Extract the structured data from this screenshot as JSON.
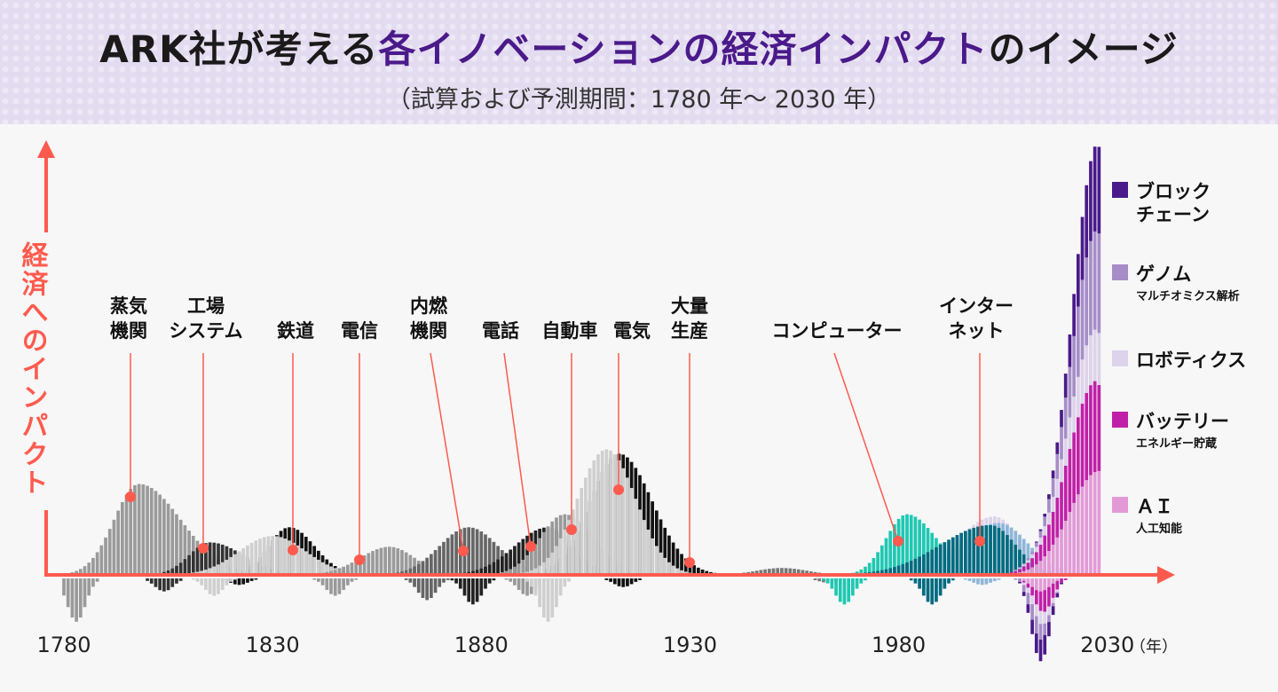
{
  "header": {
    "title_pre": "ARK社が考える",
    "title_accent": "各イノベーションの経済インパクト",
    "title_post": "のイメージ",
    "subtitle": "（試算および予測期間：1780 年～ 2030 年）"
  },
  "chart_data": {
    "type": "bar",
    "ylabel": "経済へのインパクト",
    "x_unit": "（年）",
    "xlim": [
      1780,
      2030
    ],
    "x_ticks": [
      "1780",
      "1830",
      "1880",
      "1930",
      "1980",
      "2030"
    ],
    "y_ticks": [],
    "grid": false,
    "legend_position": "right",
    "colors": {
      "axis": "#ff5a4e",
      "accent": "#4a1a8a"
    },
    "innovations": [
      {
        "label": [
          "蒸気",
          "機関"
        ],
        "year": 1795
      },
      {
        "label": [
          "工場",
          "システム"
        ],
        "year": 1812
      },
      {
        "label": [
          "鉄道"
        ],
        "year": 1834
      },
      {
        "label": [
          "電信"
        ],
        "year": 1850
      },
      {
        "label": [
          "内燃",
          "機関"
        ],
        "year": 1875
      },
      {
        "label": [
          "電話"
        ],
        "year": 1891
      },
      {
        "label": [
          "自動車"
        ],
        "year": 1901
      },
      {
        "label": [
          "電気"
        ],
        "year": 1912
      },
      {
        "label": [
          "大量",
          "生産"
        ],
        "year": 1929
      },
      {
        "label": [
          "コンピューター"
        ],
        "year": 1979
      },
      {
        "label": [
          "インター",
          "ネット"
        ],
        "year": 1999
      }
    ],
    "waves": [
      {
        "id": "steam",
        "color": "#9a9a9a",
        "peak_year": 1798,
        "peak_value": 21,
        "spread_left": 6,
        "spread_right": 10,
        "dip_year": 1783,
        "dip_value": -10
      },
      {
        "id": "factory",
        "color": "#333333",
        "peak_year": 1815,
        "peak_value": 7.5,
        "spread_left": 5,
        "spread_right": 8,
        "dip_year": 1804,
        "dip_value": -3
      },
      {
        "id": "railway-dark",
        "color": "#111111",
        "peak_year": 1834,
        "peak_value": 11,
        "spread_left": 5,
        "spread_right": 6,
        "dip_year": 1822,
        "dip_value": -1.5
      },
      {
        "id": "railway-light",
        "color": "#cfcfcf",
        "peak_year": 1830,
        "peak_value": 9,
        "spread_left": 8,
        "spread_right": 8,
        "dip_year": 1816,
        "dip_value": -4
      },
      {
        "id": "telegraph",
        "color": "#9a9a9a",
        "peak_year": 1858,
        "peak_value": 6.5,
        "spread_left": 7,
        "spread_right": 6,
        "dip_year": 1845,
        "dip_value": -4
      },
      {
        "id": "combustion",
        "color": "#666666",
        "peak_year": 1877,
        "peak_value": 11,
        "spread_left": 7,
        "spread_right": 7,
        "dip_year": 1867,
        "dip_value": -5
      },
      {
        "id": "telephone",
        "color": "#222222",
        "peak_year": 1896,
        "peak_value": 11,
        "spread_left": 8,
        "spread_right": 6,
        "dip_year": 1878,
        "dip_value": -6
      },
      {
        "id": "automobile",
        "color": "#999999",
        "peak_year": 1900,
        "peak_value": 14,
        "spread_left": 6,
        "spread_right": 7,
        "dip_year": 1891,
        "dip_value": -4
      },
      {
        "id": "mass-production",
        "color": "#111111",
        "peak_year": 1913,
        "peak_value": 28,
        "spread_left": 7,
        "spread_right": 8,
        "dip_year": 1914,
        "dip_value": -2
      },
      {
        "id": "electricity",
        "color": "#cfcfcf",
        "peak_year": 1910,
        "peak_value": 29,
        "spread_left": 7,
        "spread_right": 7,
        "dip_year": 1896,
        "dip_value": -10
      },
      {
        "id": "postwar",
        "color": "#777777",
        "peak_year": 1952,
        "peak_value": 1.6,
        "spread_left": 6,
        "spread_right": 6,
        "dip_year": 1963,
        "dip_value": -1
      },
      {
        "id": "computer",
        "color": "#1ec8b2",
        "peak_year": 1982,
        "peak_value": 14,
        "spread_left": 5,
        "spread_right": 7,
        "dip_year": 1967,
        "dip_value": -6
      },
      {
        "id": "robotics-early",
        "color": "#ddd3ea",
        "peak_year": 2003,
        "peak_value": 13.5,
        "spread_left": 9,
        "spread_right": 6,
        "dip_year": 2001,
        "dip_value": -1
      },
      {
        "id": "internet-halo",
        "color": "#8fb6d8",
        "peak_year": 2004,
        "peak_value": 12,
        "spread_left": 9,
        "spread_right": 7,
        "dip_year": 2000,
        "dip_value": -1.5
      },
      {
        "id": "internet",
        "color": "#006b80",
        "peak_year": 2002,
        "peak_value": 11.5,
        "spread_left": 12,
        "spread_right": 6,
        "dip_year": 1988,
        "dip_value": -6
      }
    ],
    "stacked_series": [
      {
        "name": "ＡＩ",
        "sub": "人工知能",
        "color": "#e29ad6",
        "peak_year": 2028,
        "peak_value": 24,
        "spread_left": 7,
        "spread_right": 3,
        "dip_year": 2014,
        "dip_value": -3
      },
      {
        "name": "バッテリー",
        "sub": "エネルギー貯蔵",
        "color": "#c020a8",
        "peak_year": 2027,
        "peak_value": 21,
        "spread_left": 7,
        "spread_right": 3,
        "dip_year": 2015,
        "dip_value": -5
      },
      {
        "name": "ロボティクス",
        "sub": "",
        "color": "#ddd3ea",
        "peak_year": 2028,
        "peak_value": 12,
        "spread_left": 7,
        "spread_right": 3,
        "dip_year": 2014,
        "dip_value": -3
      },
      {
        "name": "ゲノム",
        "sub": "マルチオミクス解析",
        "color": "#a68dc8",
        "peak_year": 2028,
        "peak_value": 23,
        "spread_left": 6,
        "spread_right": 3,
        "dip_year": 2013,
        "dip_value": -4
      },
      {
        "name": "ブロック",
        "name2": "チェーン",
        "sub": "",
        "color": "#4a1a8a",
        "peak_year": 2028,
        "peak_value": 20,
        "spread_left": 5,
        "spread_right": 3,
        "dip_year": 2014,
        "dip_value": -5
      }
    ],
    "legend": [
      {
        "name": "ブロック",
        "name2": "チェーン",
        "sub": "",
        "color": "#4a1a8a"
      },
      {
        "name": "ゲノム",
        "name2": "",
        "sub": "マルチオミクス解析",
        "color": "#a68dc8"
      },
      {
        "name": "ロボティクス",
        "name2": "",
        "sub": "",
        "color": "#ddd3ea"
      },
      {
        "name": "バッテリー",
        "name2": "",
        "sub": "エネルギー貯蔵",
        "color": "#c020a8"
      },
      {
        "name": "ＡＩ",
        "name2": "",
        "sub": "人工知能",
        "color": "#e29ad6"
      }
    ]
  }
}
